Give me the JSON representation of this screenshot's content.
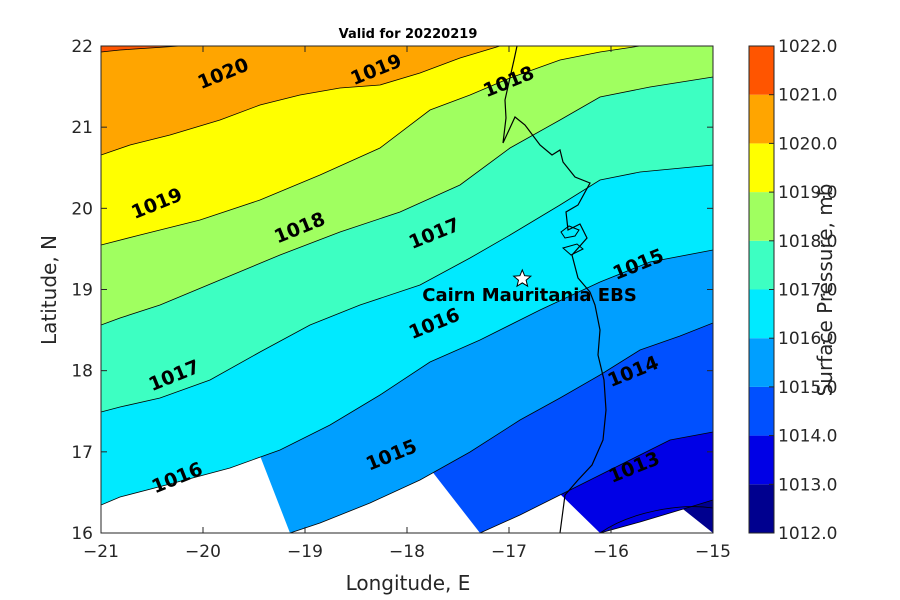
{
  "chart_data": {
    "type": "contour",
    "title": "Valid for 20220219",
    "xlabel": "Longitude, E",
    "ylabel": "Latitude, N",
    "colorbar_label": "Surface Pressure, mb",
    "xlim": [
      -21,
      -15
    ],
    "ylim": [
      16,
      22
    ],
    "x_ticks": [
      "−21",
      "−20",
      "−19",
      "−18",
      "−17",
      "−16",
      "−15"
    ],
    "y_ticks": [
      "16",
      "17",
      "18",
      "19",
      "20",
      "21",
      "22"
    ],
    "colorbar_ticks": [
      "1012.0",
      "1013.0",
      "1014.0",
      "1015.0",
      "1016.0",
      "1017.0",
      "1018.0",
      "1019.0",
      "1020.0",
      "1021.0",
      "1022.0"
    ],
    "levels": [
      1012,
      1013,
      1014,
      1015,
      1016,
      1017,
      1018,
      1019,
      1020,
      1021,
      1022
    ],
    "level_colors": [
      "#00008f",
      "#0000e6",
      "#0050ff",
      "#009fff",
      "#00eaff",
      "#3dffc2",
      "#a0ff60",
      "#ffff00",
      "#ffa500",
      "#ff5500"
    ],
    "contour_labels": [
      {
        "text": "1020",
        "lon": -19.8,
        "lat": 21.65
      },
      {
        "text": "1019",
        "lon": -18.3,
        "lat": 21.7
      },
      {
        "text": "1018",
        "lon": -17.0,
        "lat": 21.55
      },
      {
        "text": "1019",
        "lon": -20.45,
        "lat": 20.05
      },
      {
        "text": "1018",
        "lon": -19.05,
        "lat": 19.75
      },
      {
        "text": "1017",
        "lon": -17.73,
        "lat": 19.68
      },
      {
        "text": "1015",
        "lon": -15.73,
        "lat": 19.3
      },
      {
        "text": "1016",
        "lon": -17.73,
        "lat": 18.57
      },
      {
        "text": "1017",
        "lon": -20.28,
        "lat": 17.93
      },
      {
        "text": "1014",
        "lon": -15.78,
        "lat": 17.98
      },
      {
        "text": "1015",
        "lon": -18.15,
        "lat": 16.95
      },
      {
        "text": "1016",
        "lon": -20.25,
        "lat": 16.67
      },
      {
        "text": "1013",
        "lon": -15.77,
        "lat": 16.8
      }
    ],
    "marker": {
      "label": "Cairn Mauritania EBS",
      "lon": -16.87,
      "lat": 19.13
    }
  }
}
